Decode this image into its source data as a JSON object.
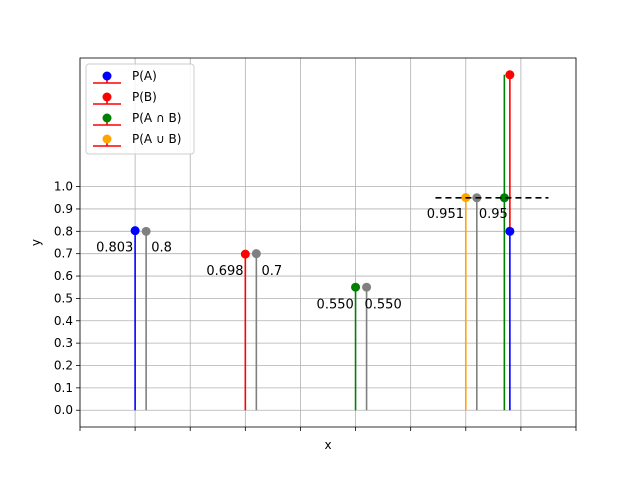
{
  "chart_data": {
    "type": "stem",
    "xlabel": "x",
    "ylabel": "y",
    "xlim": [
      0,
      9
    ],
    "ylim": [
      -0.075,
      1.575
    ],
    "yticks": [
      0.0,
      0.1,
      0.2,
      0.3,
      0.4,
      0.5,
      0.6,
      0.7,
      0.8,
      0.9,
      1.0
    ],
    "ytick_labels": [
      "0.0",
      "0.1",
      "0.2",
      "0.3",
      "0.4",
      "0.5",
      "0.6",
      "0.7",
      "0.8",
      "0.9",
      "1.0"
    ],
    "xticks": [
      0,
      1,
      2,
      3,
      4,
      5,
      6,
      7,
      8,
      9
    ],
    "grid": true,
    "legend_position": "top-left",
    "legend": [
      {
        "label": "P(A)",
        "marker_color": "#0000ff",
        "line_color": "#ff0000"
      },
      {
        "label": "P(B)",
        "marker_color": "#ff0000",
        "line_color": "#ff0000"
      },
      {
        "label": "P(A ∩ B)",
        "marker_color": "#008000",
        "line_color": "#ff0000"
      },
      {
        "label": "P(A ∪ B)",
        "marker_color": "#ffa500",
        "line_color": "#ff0000"
      }
    ],
    "stems": [
      {
        "x": 1.0,
        "y": 0.803,
        "color": "#0000ff"
      },
      {
        "x": 1.2,
        "y": 0.8,
        "color": "#808080"
      },
      {
        "x": 3.0,
        "y": 0.698,
        "color": "#ff0000"
      },
      {
        "x": 3.2,
        "y": 0.7,
        "color": "#808080"
      },
      {
        "x": 5.0,
        "y": 0.55,
        "color": "#008000"
      },
      {
        "x": 5.2,
        "y": 0.55,
        "color": "#808080"
      },
      {
        "x": 7.0,
        "y": 0.951,
        "color": "#ffa500"
      },
      {
        "x": 7.2,
        "y": 0.95,
        "color": "#808080"
      },
      {
        "x": 7.8,
        "y": 0.8,
        "color": "#0000ff",
        "line_only": true
      },
      {
        "x": 7.7,
        "y": 1.5,
        "color": "#008000",
        "line_only": true
      },
      {
        "x": 7.8,
        "y": 1.5,
        "color": "#ff0000",
        "line_only": true,
        "base": 0.8
      },
      {
        "x": 7.8,
        "y": 0.8,
        "color": "#0000ff",
        "marker_only": true
      },
      {
        "x": 7.8,
        "y": 1.5,
        "color": "#ff0000",
        "marker_only": true
      },
      {
        "x": 7.7,
        "y": 0.95,
        "color": "#008000",
        "marker_only": true
      }
    ],
    "dashed_line": {
      "x_start": 6.45,
      "x_end": 8.5,
      "y": 0.95,
      "color": "#000000"
    },
    "annotations": [
      {
        "text": "0.803",
        "x": 0.63,
        "y": 0.725
      },
      {
        "text": "0.8",
        "x": 1.48,
        "y": 0.725
      },
      {
        "text": "0.698",
        "x": 2.63,
        "y": 0.62
      },
      {
        "text": "0.7",
        "x": 3.48,
        "y": 0.62
      },
      {
        "text": "0.550",
        "x": 4.63,
        "y": 0.47
      },
      {
        "text": "0.550",
        "x": 5.5,
        "y": 0.47
      },
      {
        "text": "0.951",
        "x": 6.63,
        "y": 0.875
      },
      {
        "text": "0.95",
        "x": 7.5,
        "y": 0.875
      }
    ]
  }
}
